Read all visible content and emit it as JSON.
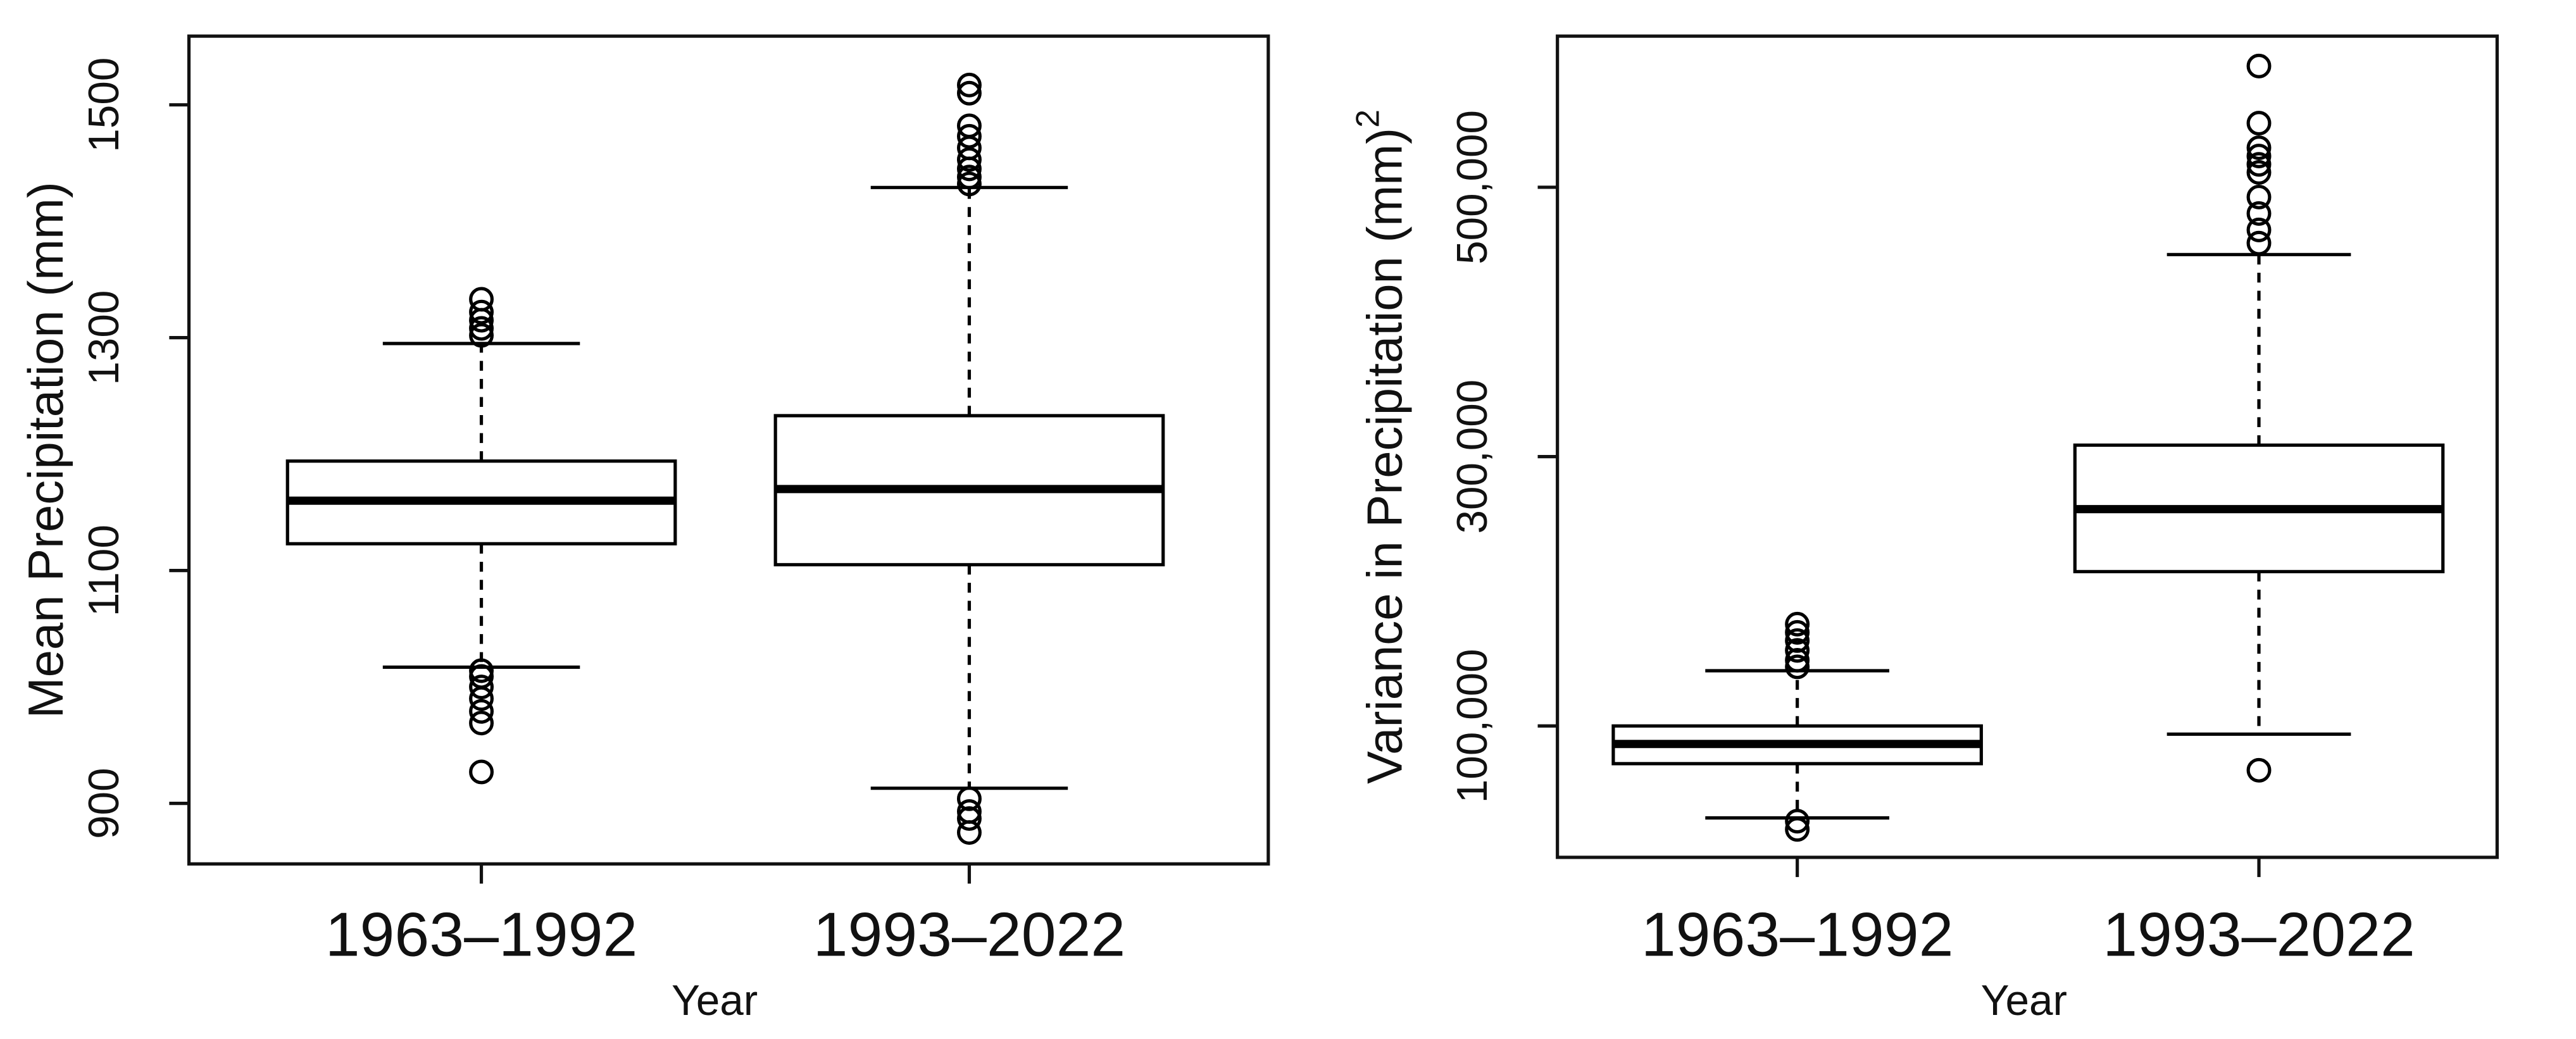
{
  "chart_data": [
    {
      "type": "box",
      "xlabel": "Year",
      "ylabel": "Mean Precipitation (mm)",
      "categories": [
        "1963–1992",
        "1993–2022"
      ],
      "boxes": [
        {
          "whisker_low": 1017,
          "q1": 1123,
          "median": 1160,
          "q3": 1194,
          "whisker_high": 1295,
          "outliers": [
            1333,
            1322,
            1315,
            1308,
            1302,
            1014,
            1009,
            1000,
            990,
            979,
            969,
            927
          ]
        },
        {
          "whisker_low": 913,
          "q1": 1105,
          "median": 1170,
          "q3": 1233,
          "whisker_high": 1429,
          "outliers": [
            1517,
            1510,
            1482,
            1473,
            1463,
            1453,
            1445,
            1438,
            1432,
            904,
            893,
            887,
            875
          ]
        }
      ],
      "ylim": [
        848,
        1559
      ],
      "yticks": [
        900,
        1100,
        1300,
        1500
      ],
      "color": "#000000"
    },
    {
      "type": "box",
      "xlabel": "Year",
      "ylabel": "Variance in Precipitation (mm)",
      "ylabel_superscript": "2",
      "categories": [
        "1963–1992",
        "1993–2022"
      ],
      "boxes": [
        {
          "whisker_low": 31700,
          "q1": 72000,
          "median": 86600,
          "q3": 100000,
          "whisker_high": 141000,
          "outliers": [
            175600,
            169500,
            163400,
            156100,
            148800,
            143900,
            29300,
            23200
          ]
        },
        {
          "whisker_low": 93900,
          "q1": 214600,
          "median": 261000,
          "q3": 308500,
          "whisker_high": 450000,
          "outliers": [
            590000,
            547600,
            529300,
            523200,
            517000,
            511000,
            492700,
            480500,
            468300,
            458500,
            67100
          ]
        }
      ],
      "ylim": [
        2440,
        612200
      ],
      "yticks": [
        {
          "value": 100000,
          "label": "100,000"
        },
        {
          "value": 300000,
          "label": "300,000"
        },
        {
          "value": 500000,
          "label": "500,000"
        }
      ],
      "color": "#000000"
    }
  ]
}
